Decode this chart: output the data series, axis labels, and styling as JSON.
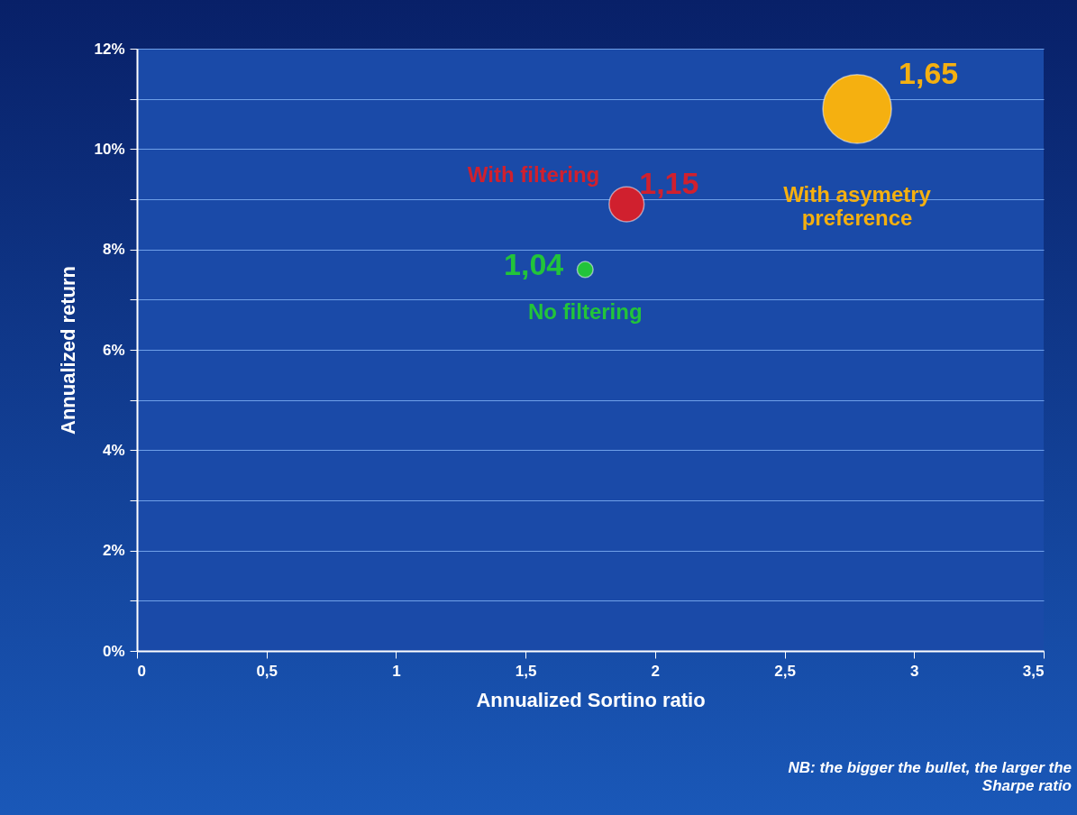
{
  "chart_data": {
    "type": "bubble",
    "xlabel": "Annualized Sortino ratio",
    "ylabel": "Annualized return",
    "xlim": [
      0,
      3.5
    ],
    "ylim": [
      0,
      12
    ],
    "xticks": [
      0,
      {
        "value": 0.5,
        "label": "0,5"
      },
      1,
      {
        "value": 1.5,
        "label": "1,5"
      },
      2,
      {
        "value": 2.5,
        "label": "2,5"
      },
      3,
      {
        "value": 3.5,
        "label": "3,5"
      }
    ],
    "yticks": [
      {
        "value": 0,
        "label": "0%"
      },
      {
        "value": 1,
        "label": null
      },
      {
        "value": 2,
        "label": "2%"
      },
      {
        "value": 3,
        "label": null
      },
      {
        "value": 4,
        "label": "4%"
      },
      {
        "value": 5,
        "label": null
      },
      {
        "value": 6,
        "label": "6%"
      },
      {
        "value": 7,
        "label": null
      },
      {
        "value": 8,
        "label": "8%"
      },
      {
        "value": 9,
        "label": null
      },
      {
        "value": 10,
        "label": "10%"
      },
      {
        "value": 11,
        "label": null
      },
      {
        "value": 12,
        "label": "12%"
      }
    ],
    "grid": "y",
    "marker": "circle",
    "series": [
      {
        "name": "No filtering",
        "color": "#22c43a",
        "x": [
          1.73
        ],
        "values": [
          7.6
        ],
        "sizes": [
          0.054
        ]
      },
      {
        "name": "With filtering",
        "color": "#d0202e",
        "x": [
          1.89
        ],
        "values": [
          8.9
        ],
        "sizes": [
          0.26
        ]
      },
      {
        "name": "With asymetry preference",
        "color": "#f5b010",
        "x": [
          2.78
        ],
        "values": [
          10.8
        ],
        "sizes": [
          1
        ]
      }
    ],
    "annotations": [
      {
        "text": "1,04",
        "x": 1.73,
        "y": 7.6
      },
      {
        "text": "1,15",
        "x": 1.89,
        "y": 8.9
      },
      {
        "text": "1,65",
        "x": 2.78,
        "y": 10.8
      },
      "NB: the bigger the bullet, the larger the Sharpe ratio"
    ]
  }
}
